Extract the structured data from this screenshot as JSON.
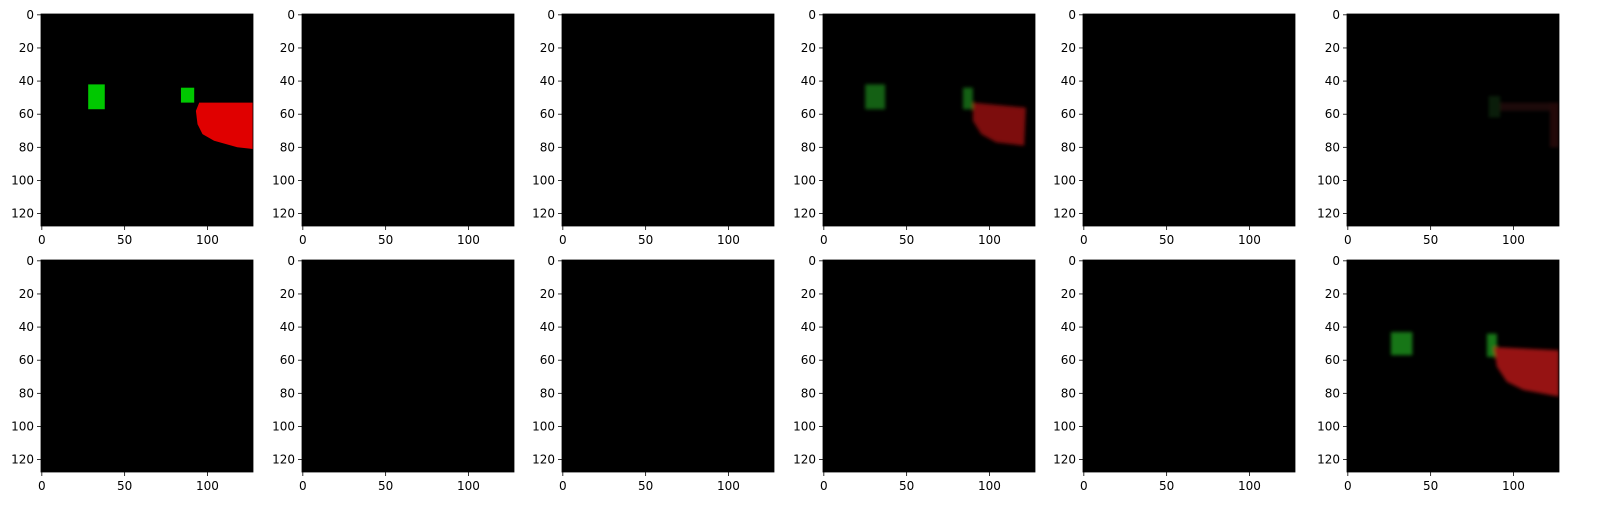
{
  "chart_data": {
    "type": "image-grid",
    "rows": 2,
    "cols": 6,
    "image_size": [
      128,
      128
    ],
    "xticks": [
      0,
      50,
      100
    ],
    "yticks": [
      0,
      20,
      40,
      60,
      80,
      100,
      120
    ],
    "xlim": [
      -0.5,
      127.5
    ],
    "ylim": [
      127.5,
      -0.5
    ],
    "colors": {
      "background": "#000000",
      "green": "#00c400",
      "red": "#e00000"
    },
    "panels": [
      {
        "content": "full",
        "opacity": 1.0,
        "blur": 0,
        "objects": [
          {
            "shape": "rect",
            "color": "#00c800",
            "x": [
              28,
              38
            ],
            "y": [
              42,
              57
            ]
          },
          {
            "shape": "rect",
            "color": "#00c800",
            "x": [
              84,
              92
            ],
            "y": [
              44,
              53
            ]
          },
          {
            "shape": "polygon",
            "color": "#e00000",
            "points": [
              [
                95,
                53
              ],
              [
                127.5,
                53
              ],
              [
                127.5,
                81
              ],
              [
                118,
                80
              ],
              [
                104,
                76
              ],
              [
                97,
                72
              ],
              [
                94,
                66
              ],
              [
                93,
                58
              ]
            ]
          }
        ]
      },
      {
        "content": "empty"
      },
      {
        "content": "empty"
      },
      {
        "content": "full",
        "opacity": 0.6,
        "blur": 1.2,
        "objects": [
          {
            "shape": "rect",
            "color": "#22a022",
            "x": [
              25,
              37
            ],
            "y": [
              42,
              57
            ]
          },
          {
            "shape": "rect",
            "color": "#22a022",
            "x": [
              84,
              90
            ],
            "y": [
              44,
              57
            ]
          },
          {
            "shape": "polygon",
            "color": "#d01818",
            "points": [
              [
                90,
                53
              ],
              [
                122,
                56
              ],
              [
                121,
                79
              ],
              [
                104,
                77
              ],
              [
                95,
                72
              ],
              [
                90,
                64
              ]
            ]
          }
        ]
      },
      {
        "content": "empty"
      },
      {
        "content": "faint",
        "opacity": 0.18,
        "blur": 1.0,
        "objects": [
          {
            "shape": "rect",
            "color": "#3aa03a",
            "x": [
              85,
              92
            ],
            "y": [
              49,
              62
            ]
          },
          {
            "shape": "rect",
            "color": "#a03a3a",
            "x": [
              92,
              124
            ],
            "y": [
              53,
              58
            ]
          },
          {
            "shape": "rect",
            "color": "#c03030",
            "x": [
              122,
              127.5
            ],
            "y": [
              53,
              80
            ]
          }
        ]
      },
      {
        "content": "empty"
      },
      {
        "content": "empty"
      },
      {
        "content": "empty"
      },
      {
        "content": "empty"
      },
      {
        "content": "empty"
      },
      {
        "content": "full",
        "opacity": 0.7,
        "blur": 1.2,
        "objects": [
          {
            "shape": "rect",
            "color": "#22a822",
            "x": [
              26,
              39
            ],
            "y": [
              43,
              57
            ]
          },
          {
            "shape": "rect",
            "color": "#22a822",
            "x": [
              84,
              90
            ],
            "y": [
              44,
              58
            ]
          },
          {
            "shape": "polygon",
            "color": "#d61a1a",
            "points": [
              [
                88,
                52
              ],
              [
                127.5,
                54
              ],
              [
                127.5,
                82
              ],
              [
                106,
                78
              ],
              [
                96,
                73
              ],
              [
                90,
                64
              ]
            ]
          }
        ]
      }
    ]
  }
}
